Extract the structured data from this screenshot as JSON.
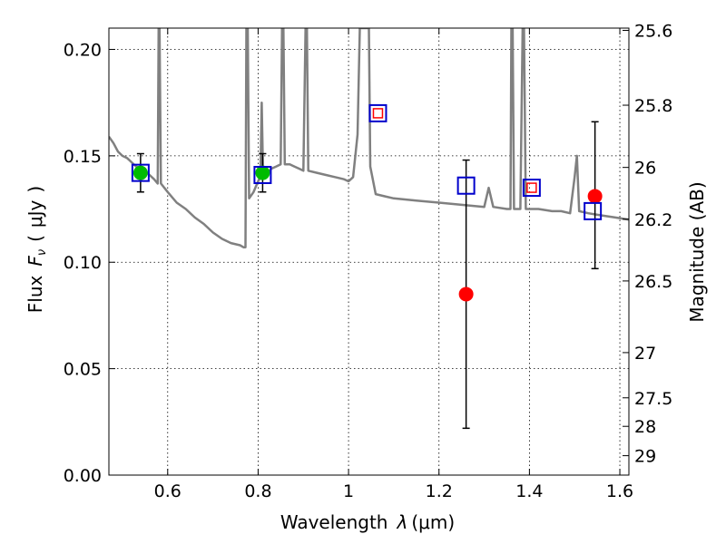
{
  "chart_data": {
    "type": "scatter",
    "xlabel": "Wavelength",
    "xlabel_symbol": "λ",
    "xlabel_unit": "(μm)",
    "ylabel": "Flux",
    "ylabel_symbol_base": "F",
    "ylabel_symbol_sub": "ν",
    "ylabel_unit_prefix": "(",
    "ylabel_unit": "μJy",
    "ylabel_unit_suffix": ")",
    "y2label": "Magnitude (AB)",
    "xlim": [
      0.47,
      1.62
    ],
    "ylim": [
      0.0,
      0.21
    ],
    "grid": true,
    "x_ticks": [
      0.6,
      0.8,
      1.0,
      1.2,
      1.4,
      1.6
    ],
    "x_tick_labels": [
      "0.6",
      "0.8",
      "1",
      "1.2",
      "1.4",
      "1.6"
    ],
    "y_ticks": [
      0.0,
      0.05,
      0.1,
      0.15,
      0.2
    ],
    "y_tick_labels": [
      "0.00",
      "0.05",
      "0.10",
      "0.15",
      "0.20"
    ],
    "y2_ticks": [
      {
        "label": "25.6",
        "mag": 25.6
      },
      {
        "label": "25.8",
        "mag": 25.8
      },
      {
        "label": "26",
        "mag": 26.0
      },
      {
        "label": "26.2",
        "mag": 26.2
      },
      {
        "label": "26.5",
        "mag": 26.5
      },
      {
        "label": "27",
        "mag": 27.0
      },
      {
        "label": "27.5",
        "mag": 27.5
      },
      {
        "label": "28",
        "mag": 28.0
      },
      {
        "label": "29",
        "mag": 29.0
      }
    ],
    "series": [
      {
        "kind": "line",
        "color": "#808080",
        "points": [
          [
            0.47,
            0.159
          ],
          [
            0.48,
            0.156
          ],
          [
            0.49,
            0.152
          ],
          [
            0.5,
            0.15
          ],
          [
            0.51,
            0.149
          ],
          [
            0.52,
            0.147
          ],
          [
            0.53,
            0.145
          ],
          [
            0.54,
            0.144
          ],
          [
            0.55,
            0.143
          ],
          [
            0.56,
            0.141
          ],
          [
            0.57,
            0.139
          ],
          [
            0.578,
            0.137
          ],
          [
            0.58,
            0.21
          ],
          [
            0.582,
            0.21
          ],
          [
            0.585,
            0.137
          ],
          [
            0.6,
            0.133
          ],
          [
            0.62,
            0.128
          ],
          [
            0.64,
            0.125
          ],
          [
            0.66,
            0.121
          ],
          [
            0.68,
            0.118
          ],
          [
            0.7,
            0.114
          ],
          [
            0.72,
            0.111
          ],
          [
            0.74,
            0.109
          ],
          [
            0.76,
            0.108
          ],
          [
            0.768,
            0.107
          ],
          [
            0.772,
            0.107
          ],
          [
            0.774,
            0.21
          ],
          [
            0.777,
            0.21
          ],
          [
            0.78,
            0.13
          ],
          [
            0.79,
            0.133
          ],
          [
            0.8,
            0.138
          ],
          [
            0.805,
            0.14
          ],
          [
            0.808,
            0.175
          ],
          [
            0.811,
            0.14
          ],
          [
            0.82,
            0.142
          ],
          [
            0.83,
            0.144
          ],
          [
            0.84,
            0.145
          ],
          [
            0.85,
            0.146
          ],
          [
            0.853,
            0.21
          ],
          [
            0.856,
            0.21
          ],
          [
            0.859,
            0.146
          ],
          [
            0.87,
            0.146
          ],
          [
            0.88,
            0.145
          ],
          [
            0.89,
            0.144
          ],
          [
            0.9,
            0.143
          ],
          [
            0.905,
            0.21
          ],
          [
            0.908,
            0.21
          ],
          [
            0.911,
            0.143
          ],
          [
            0.93,
            0.142
          ],
          [
            0.95,
            0.141
          ],
          [
            0.97,
            0.14
          ],
          [
            0.99,
            0.139
          ],
          [
            1.0,
            0.138
          ],
          [
            1.01,
            0.14
          ],
          [
            1.02,
            0.16
          ],
          [
            1.025,
            0.21
          ],
          [
            1.045,
            0.21
          ],
          [
            1.048,
            0.145
          ],
          [
            1.06,
            0.132
          ],
          [
            1.08,
            0.131
          ],
          [
            1.1,
            0.13
          ],
          [
            1.15,
            0.129
          ],
          [
            1.2,
            0.128
          ],
          [
            1.25,
            0.127
          ],
          [
            1.3,
            0.126
          ],
          [
            1.31,
            0.135
          ],
          [
            1.32,
            0.126
          ],
          [
            1.35,
            0.125
          ],
          [
            1.358,
            0.125
          ],
          [
            1.36,
            0.21
          ],
          [
            1.363,
            0.21
          ],
          [
            1.366,
            0.125
          ],
          [
            1.38,
            0.125
          ],
          [
            1.385,
            0.21
          ],
          [
            1.388,
            0.21
          ],
          [
            1.392,
            0.125
          ],
          [
            1.42,
            0.125
          ],
          [
            1.45,
            0.124
          ],
          [
            1.47,
            0.124
          ],
          [
            1.49,
            0.123
          ],
          [
            1.5,
            0.14
          ],
          [
            1.505,
            0.15
          ],
          [
            1.51,
            0.124
          ],
          [
            1.53,
            0.123
          ],
          [
            1.56,
            0.122
          ],
          [
            1.59,
            0.121
          ],
          [
            1.62,
            0.12
          ]
        ]
      },
      {
        "kind": "error_points",
        "color": "#00bb00",
        "points": [
          {
            "x": 0.54,
            "y": 0.142,
            "ylo": 0.133,
            "yhi": 0.151
          },
          {
            "x": 0.81,
            "y": 0.142,
            "ylo": 0.133,
            "yhi": 0.151
          }
        ]
      },
      {
        "kind": "error_points",
        "color": "#ff0000",
        "points": [
          {
            "x": 1.26,
            "y": 0.085,
            "ylo": 0.022,
            "yhi": 0.148
          },
          {
            "x": 1.545,
            "y": 0.131,
            "ylo": 0.097,
            "yhi": 0.166
          }
        ]
      },
      {
        "kind": "squares",
        "color": "#0000cc",
        "points": [
          {
            "x": 0.54,
            "y": 0.142
          },
          {
            "x": 0.81,
            "y": 0.141
          },
          {
            "x": 1.065,
            "y": 0.17
          },
          {
            "x": 1.26,
            "y": 0.136
          },
          {
            "x": 1.405,
            "y": 0.135
          },
          {
            "x": 1.54,
            "y": 0.124
          }
        ]
      },
      {
        "kind": "small_squares",
        "color": "#ff0000",
        "points": [
          {
            "x": 1.065,
            "y": 0.17
          },
          {
            "x": 1.405,
            "y": 0.135
          }
        ]
      }
    ]
  }
}
